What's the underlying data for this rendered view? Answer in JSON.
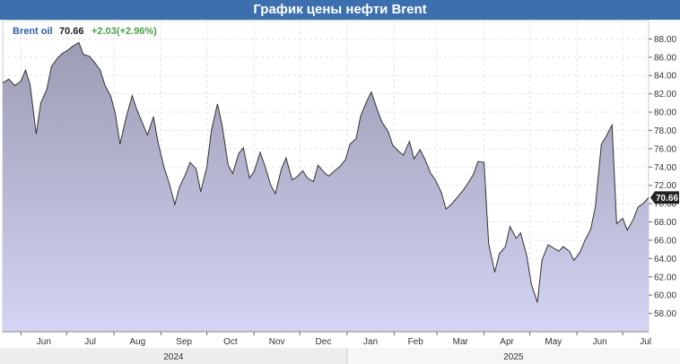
{
  "header": {
    "title": "График цены нефти Brent"
  },
  "legend": {
    "name": "Brent oil",
    "value": "70.66",
    "change": "+2.03(+2.96%)"
  },
  "colors": {
    "header": "#3b6fad",
    "line": "#333333",
    "area_top": "#9c9cb4",
    "area_bottom": "#d4d4f4",
    "change": "#4aa14a",
    "flag": "#222222"
  },
  "chart_data": {
    "type": "area",
    "title": "График цены нефти Brent",
    "xlabel": "",
    "ylabel": "",
    "ylim": [
      56,
      90
    ],
    "y_ticks": [
      "88.00",
      "86.00",
      "84.00",
      "82.00",
      "80.00",
      "78.00",
      "76.00",
      "74.00",
      "72.00",
      "70.00",
      "68.00",
      "66.00",
      "64.00",
      "62.00",
      "60.00",
      "58.00"
    ],
    "x_ticks": [
      "Jun",
      "Jul",
      "Aug",
      "Sep",
      "Oct",
      "Nov",
      "Dec",
      "Jan",
      "Feb",
      "Mar",
      "Apr",
      "May",
      "Jun",
      "Jul"
    ],
    "years": [
      "2024",
      "2025"
    ],
    "last_value": "70.66",
    "grid": true,
    "series": [
      {
        "x": [
          "2024-05-20",
          "2024-05-24",
          "2024-05-28",
          "2024-06-01",
          "2024-06-04",
          "2024-06-07",
          "2024-06-11",
          "2024-06-14",
          "2024-06-18",
          "2024-06-21",
          "2024-06-25",
          "2024-06-28",
          "2024-07-02",
          "2024-07-05",
          "2024-07-09",
          "2024-07-12",
          "2024-07-16",
          "2024-07-19",
          "2024-07-23",
          "2024-07-26",
          "2024-07-30",
          "2024-08-02",
          "2024-08-05",
          "2024-08-09",
          "2024-08-13",
          "2024-08-16",
          "2024-08-20",
          "2024-08-23",
          "2024-08-27",
          "2024-08-30",
          "2024-09-03",
          "2024-09-06",
          "2024-09-10",
          "2024-09-13",
          "2024-09-17",
          "2024-09-20",
          "2024-09-24",
          "2024-09-27",
          "2024-10-01",
          "2024-10-04",
          "2024-10-08",
          "2024-10-11",
          "2024-10-15",
          "2024-10-18",
          "2024-10-22",
          "2024-10-25",
          "2024-10-29",
          "2024-11-01",
          "2024-11-05",
          "2024-11-08",
          "2024-11-12",
          "2024-11-15",
          "2024-11-19",
          "2024-11-22",
          "2024-11-26",
          "2024-11-29",
          "2024-12-03",
          "2024-12-06",
          "2024-12-10",
          "2024-12-13",
          "2024-12-17",
          "2024-12-20",
          "2024-12-24",
          "2024-12-27",
          "2024-12-31",
          "2025-01-03",
          "2025-01-07",
          "2025-01-10",
          "2025-01-14",
          "2025-01-17",
          "2025-01-21",
          "2025-01-24",
          "2025-01-28",
          "2025-01-31",
          "2025-02-04",
          "2025-02-07",
          "2025-02-11",
          "2025-02-14",
          "2025-02-18",
          "2025-02-21",
          "2025-02-25",
          "2025-02-28",
          "2025-03-04",
          "2025-03-07",
          "2025-03-11",
          "2025-03-14",
          "2025-03-18",
          "2025-03-21",
          "2025-03-25",
          "2025-03-28",
          "2025-04-01",
          "2025-04-04",
          "2025-04-08",
          "2025-04-11",
          "2025-04-15",
          "2025-04-18",
          "2025-04-22",
          "2025-04-25",
          "2025-04-29",
          "2025-05-02",
          "2025-05-06",
          "2025-05-09",
          "2025-05-13",
          "2025-05-16",
          "2025-05-20",
          "2025-05-23",
          "2025-05-27",
          "2025-05-30",
          "2025-06-03",
          "2025-06-06",
          "2025-06-10",
          "2025-06-13",
          "2025-06-17",
          "2025-06-20",
          "2025-06-24",
          "2025-06-27",
          "2025-07-01",
          "2025-07-04",
          "2025-07-08",
          "2025-07-11",
          "2025-07-15",
          "2025-07-18"
        ],
        "values": [
          83.2,
          83.6,
          82.9,
          83.4,
          84.6,
          83.0,
          77.6,
          81.0,
          82.5,
          85.0,
          85.9,
          86.4,
          86.8,
          87.2,
          87.6,
          86.3,
          86.1,
          85.5,
          84.6,
          83.0,
          81.7,
          79.8,
          76.5,
          79.4,
          81.8,
          80.3,
          78.7,
          77.5,
          79.5,
          76.7,
          73.9,
          72.4,
          69.9,
          71.8,
          73.2,
          74.5,
          73.8,
          71.3,
          74.0,
          78.0,
          80.9,
          78.6,
          74.2,
          73.3,
          75.5,
          76.1,
          72.8,
          73.5,
          75.6,
          74.2,
          72.0,
          71.1,
          73.8,
          75.0,
          72.6,
          72.9,
          73.6,
          72.8,
          72.4,
          74.2,
          73.4,
          73.0,
          73.6,
          74.0,
          74.8,
          76.5,
          77.1,
          79.6,
          81.2,
          82.2,
          80.2,
          78.9,
          77.9,
          76.4,
          75.7,
          75.3,
          76.8,
          74.9,
          75.9,
          74.9,
          73.3,
          72.6,
          71.2,
          69.4,
          70.0,
          70.6,
          71.4,
          72.1,
          73.2,
          74.6,
          74.5,
          65.6,
          62.5,
          64.5,
          65.3,
          67.5,
          66.2,
          66.8,
          64.3,
          61.2,
          59.2,
          63.8,
          65.5,
          65.2,
          64.8,
          65.3,
          64.8,
          63.8,
          64.7,
          65.9,
          67.2,
          69.6,
          76.5,
          77.3,
          78.6,
          67.8,
          68.4,
          67.1,
          68.3,
          69.6,
          70.1,
          70.66
        ]
      }
    ]
  }
}
